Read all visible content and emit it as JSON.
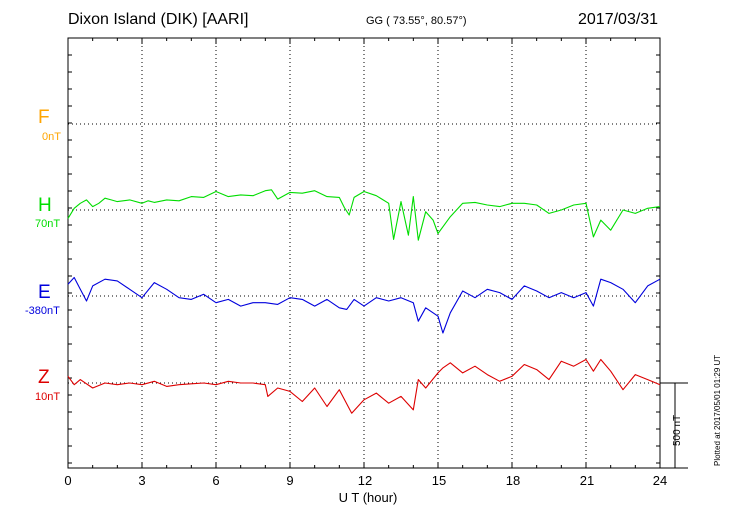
{
  "header": {
    "station": "Dixon Island (DIK)  [AARI]",
    "coords": "GG ( 73.55°,  80.57°)",
    "date": "2017/03/31"
  },
  "plotted_note": "Plotted at 2017/05/01 01:29 UT",
  "scale_label": "500 nT",
  "colors": {
    "F": "#ffa500",
    "H": "#00dd00",
    "E": "#0000dd",
    "Z": "#dd0000"
  },
  "chart_data": {
    "type": "line",
    "xlabel": "U T (hour)",
    "xlim": [
      0,
      24
    ],
    "xticks": [
      "0",
      "3",
      "6",
      "9",
      "12",
      "15",
      "18",
      "21",
      "24"
    ],
    "grid": true,
    "series": [
      {
        "name": "F",
        "offset": "0nT",
        "values": []
      },
      {
        "name": "H",
        "offset": "70nT",
        "x": [
          0,
          0.25,
          0.5,
          0.75,
          1,
          1.25,
          1.5,
          1.75,
          2,
          2.5,
          3,
          3.25,
          3.5,
          4,
          4.5,
          5,
          5.5,
          6,
          6.5,
          7,
          7.5,
          8,
          8.25,
          8.5,
          9,
          9.5,
          10,
          10.5,
          11,
          11.2,
          11.4,
          11.6,
          12,
          12.5,
          13,
          13.2,
          13.5,
          13.8,
          14,
          14.2,
          14.5,
          14.8,
          15,
          15.2,
          15.5,
          16,
          16.5,
          17,
          17.5,
          18,
          18.5,
          19,
          19.5,
          20,
          20.5,
          21,
          21.3,
          21.6,
          22,
          22.5,
          23,
          23.5,
          24
        ],
        "y": [
          -50,
          10,
          40,
          60,
          20,
          40,
          70,
          60,
          50,
          60,
          40,
          55,
          45,
          60,
          55,
          80,
          75,
          110,
          80,
          90,
          85,
          115,
          120,
          65,
          105,
          100,
          115,
          80,
          75,
          15,
          -30,
          75,
          110,
          85,
          40,
          -175,
          50,
          -150,
          80,
          -180,
          -10,
          -60,
          -140,
          -100,
          -40,
          40,
          45,
          30,
          20,
          40,
          40,
          30,
          -20,
          0,
          30,
          40,
          -160,
          -60,
          -120,
          0,
          -20,
          10,
          20
        ]
      },
      {
        "name": "E",
        "offset": "-380nT",
        "x": [
          0,
          0.25,
          0.5,
          0.75,
          1,
          1.5,
          2,
          2.5,
          3,
          3.5,
          4,
          4.5,
          5,
          5.5,
          6,
          6.5,
          7,
          7.5,
          8,
          8.5,
          9,
          9.5,
          10,
          10.5,
          11,
          11.3,
          11.6,
          12,
          12.5,
          13,
          13.5,
          14,
          14.2,
          14.5,
          15,
          15.2,
          15.5,
          16,
          16.5,
          17,
          17.5,
          18,
          18.5,
          19,
          19.5,
          20,
          20.5,
          21,
          21.3,
          21.6,
          22,
          22.5,
          23,
          23.5,
          24
        ],
        "y": [
          70,
          110,
          40,
          -30,
          60,
          100,
          90,
          40,
          -10,
          80,
          40,
          -10,
          -20,
          10,
          -40,
          -20,
          -60,
          -40,
          -40,
          -50,
          -10,
          -20,
          -60,
          -20,
          -70,
          -80,
          -20,
          -60,
          -10,
          -30,
          -10,
          -40,
          -150,
          -70,
          -120,
          -220,
          -100,
          30,
          -10,
          40,
          20,
          -20,
          60,
          30,
          -10,
          20,
          -10,
          20,
          -60,
          100,
          80,
          40,
          -40,
          60,
          100
        ]
      },
      {
        "name": "Z",
        "offset": "10nT",
        "x": [
          0,
          0.25,
          0.5,
          1,
          1.5,
          2,
          2.5,
          3,
          3.5,
          4,
          4.5,
          5,
          5.5,
          6,
          6.5,
          7,
          7.5,
          8,
          8.1,
          8.5,
          9,
          9.5,
          10,
          10.5,
          11,
          11.5,
          12,
          12.5,
          13,
          13.5,
          14,
          14.2,
          14.5,
          15,
          15.2,
          15.5,
          16,
          16.5,
          17,
          17.5,
          18,
          18.5,
          19,
          19.5,
          20,
          20.5,
          21,
          21.3,
          21.6,
          22,
          22.5,
          23,
          23.5,
          24
        ],
        "y": [
          40,
          -10,
          20,
          -30,
          0,
          -10,
          0,
          -10,
          10,
          -20,
          -10,
          -5,
          0,
          -10,
          10,
          0,
          0,
          -10,
          -80,
          -30,
          -50,
          -110,
          -30,
          -140,
          -40,
          -180,
          -100,
          -60,
          -120,
          -80,
          -160,
          20,
          -30,
          60,
          90,
          120,
          60,
          100,
          50,
          10,
          40,
          110,
          80,
          20,
          130,
          100,
          140,
          70,
          140,
          70,
          -40,
          50,
          20,
          -10
        ]
      }
    ]
  }
}
